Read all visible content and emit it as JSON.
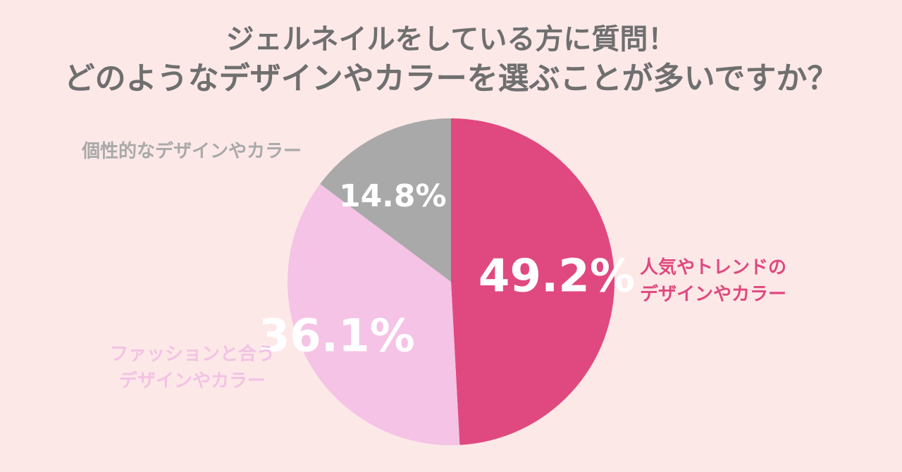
{
  "title": {
    "line1": "ジェルネイルをしている方に質問！",
    "line2": "どのようなデザインやカラーを選ぶことが多いですか？"
  },
  "chart_data": {
    "type": "pie",
    "title": "ジェルネイルをしている方に質問！ どのようなデザインやカラーを選ぶことが多いですか？",
    "slices": [
      {
        "label_lines": [
          "人気やトレンドの",
          "デザインやカラー"
        ],
        "value": 49.2,
        "display": "49.2%",
        "color": "#e0497f",
        "label_color": "#e0497f"
      },
      {
        "label_lines": [
          "ファッションと合う",
          "デザインやカラー"
        ],
        "value": 36.1,
        "display": "36.1%",
        "color": "#f5c3e5",
        "label_color": "#f3c3e3"
      },
      {
        "label_lines": [
          "個性的なデザインやカラー"
        ],
        "value": 14.8,
        "display": "14.8%",
        "color": "#a9a9a9",
        "label_color": "#a9a9a9"
      }
    ],
    "start_angle_deg": 0,
    "direction": "clockwise"
  }
}
